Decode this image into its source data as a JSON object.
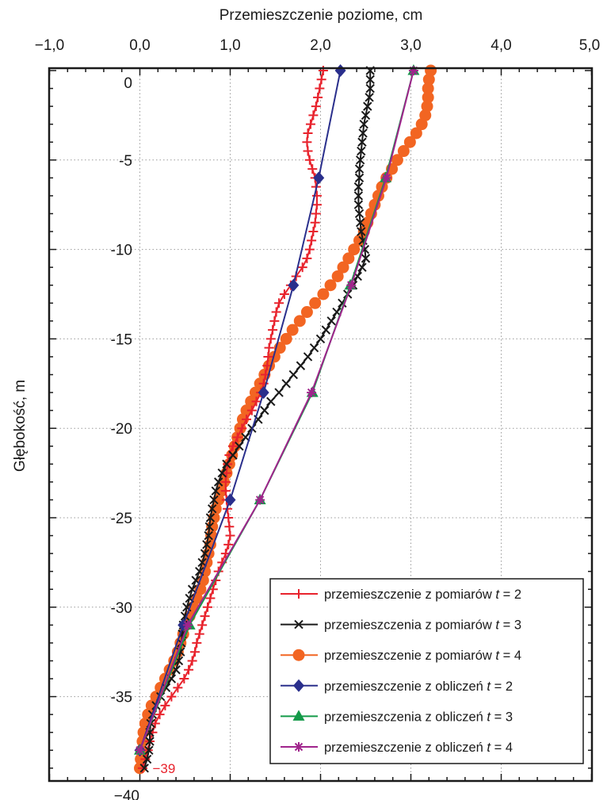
{
  "chart_data": {
    "type": "line",
    "xlabel": "Przemieszczenie poziome, cm",
    "ylabel": "Głębokość, m",
    "xlim": [
      -1.0,
      5.0
    ],
    "ylim": [
      -40,
      0
    ],
    "x_axis_position": "top",
    "grid": "dotted",
    "x_ticks": [
      -1.0,
      0.0,
      1.0,
      2.0,
      3.0,
      4.0,
      5.0
    ],
    "x_tick_labels": [
      "−1,0",
      "0,0",
      "1,0",
      "2,0",
      "3,0",
      "4,0",
      "5,0"
    ],
    "y_ticks": [
      0,
      -5,
      -10,
      -15,
      -20,
      -25,
      -30,
      -35,
      -40
    ],
    "y_tick_labels": [
      "0",
      "-5",
      "-10",
      "-15",
      "-20",
      "-25",
      "-30",
      "-35",
      "−40"
    ],
    "legend_position": "bottom-right",
    "annotation": {
      "text": "−39",
      "x": 0.0,
      "y": -39,
      "color": "#e8232d"
    },
    "series": [
      {
        "name": "przemieszczenie z pomiarów t = 2",
        "label_prefix": "przemieszczenie z pomiarów ",
        "color": "#e8232d",
        "marker": "plus",
        "points": [
          [
            2.03,
            0
          ],
          [
            2.01,
            -0.5
          ],
          [
            1.99,
            -1
          ],
          [
            1.97,
            -1.5
          ],
          [
            1.95,
            -2
          ],
          [
            1.92,
            -2.5
          ],
          [
            1.89,
            -3
          ],
          [
            1.86,
            -3.5
          ],
          [
            1.85,
            -4
          ],
          [
            1.86,
            -4.5
          ],
          [
            1.88,
            -5
          ],
          [
            1.91,
            -5.5
          ],
          [
            1.94,
            -6
          ],
          [
            1.95,
            -6.5
          ],
          [
            1.96,
            -7
          ],
          [
            1.96,
            -7.5
          ],
          [
            1.95,
            -8
          ],
          [
            1.94,
            -8.5
          ],
          [
            1.92,
            -9
          ],
          [
            1.9,
            -9.5
          ],
          [
            1.88,
            -10
          ],
          [
            1.85,
            -10.5
          ],
          [
            1.8,
            -11
          ],
          [
            1.73,
            -11.5
          ],
          [
            1.67,
            -12
          ],
          [
            1.6,
            -12.5
          ],
          [
            1.54,
            -13
          ],
          [
            1.51,
            -13.5
          ],
          [
            1.49,
            -14
          ],
          [
            1.47,
            -14.5
          ],
          [
            1.45,
            -15
          ],
          [
            1.43,
            -15.5
          ],
          [
            1.42,
            -16
          ],
          [
            1.41,
            -16.5
          ],
          [
            1.39,
            -17
          ],
          [
            1.37,
            -17.5
          ],
          [
            1.34,
            -18
          ],
          [
            1.29,
            -18.5
          ],
          [
            1.24,
            -19
          ],
          [
            1.18,
            -19.5
          ],
          [
            1.13,
            -20
          ],
          [
            1.08,
            -20.5
          ],
          [
            1.03,
            -21
          ],
          [
            0.99,
            -21.5
          ],
          [
            0.97,
            -22
          ],
          [
            0.96,
            -22.5
          ],
          [
            0.95,
            -23
          ],
          [
            0.95,
            -23.5
          ],
          [
            0.96,
            -24
          ],
          [
            0.97,
            -24.5
          ],
          [
            0.98,
            -25
          ],
          [
            0.99,
            -25.5
          ],
          [
            1.0,
            -26
          ],
          [
            0.98,
            -26.5
          ],
          [
            0.95,
            -27
          ],
          [
            0.91,
            -27.5
          ],
          [
            0.87,
            -28
          ],
          [
            0.84,
            -28.5
          ],
          [
            0.81,
            -29
          ],
          [
            0.78,
            -29.5
          ],
          [
            0.75,
            -30
          ],
          [
            0.72,
            -30.5
          ],
          [
            0.69,
            -31
          ],
          [
            0.66,
            -31.5
          ],
          [
            0.63,
            -32
          ],
          [
            0.61,
            -32.5
          ],
          [
            0.58,
            -33
          ],
          [
            0.54,
            -33.5
          ],
          [
            0.49,
            -34
          ],
          [
            0.42,
            -34.5
          ],
          [
            0.35,
            -35
          ],
          [
            0.28,
            -35.5
          ],
          [
            0.22,
            -36
          ],
          [
            0.17,
            -36.5
          ],
          [
            0.14,
            -37
          ],
          [
            0.11,
            -37.5
          ],
          [
            0.09,
            -38
          ],
          [
            0.06,
            -38.5
          ],
          [
            0.03,
            -39
          ]
        ]
      },
      {
        "name": "przemieszczenia z pomiarów t = 3",
        "label_prefix": "przemieszczenia z pomiarów ",
        "color": "#1a1a1a",
        "marker": "x",
        "points": [
          [
            2.55,
            0
          ],
          [
            2.55,
            -0.5
          ],
          [
            2.55,
            -1
          ],
          [
            2.54,
            -1.5
          ],
          [
            2.52,
            -2
          ],
          [
            2.5,
            -2.5
          ],
          [
            2.48,
            -3
          ],
          [
            2.47,
            -3.5
          ],
          [
            2.46,
            -4
          ],
          [
            2.45,
            -4.5
          ],
          [
            2.44,
            -5
          ],
          [
            2.43,
            -5.5
          ],
          [
            2.43,
            -6
          ],
          [
            2.42,
            -6.5
          ],
          [
            2.42,
            -7
          ],
          [
            2.42,
            -7.5
          ],
          [
            2.43,
            -8
          ],
          [
            2.44,
            -8.5
          ],
          [
            2.45,
            -9
          ],
          [
            2.47,
            -9.5
          ],
          [
            2.49,
            -10
          ],
          [
            2.5,
            -10.5
          ],
          [
            2.46,
            -11
          ],
          [
            2.41,
            -11.5
          ],
          [
            2.36,
            -12
          ],
          [
            2.3,
            -12.5
          ],
          [
            2.24,
            -13
          ],
          [
            2.18,
            -13.5
          ],
          [
            2.12,
            -14
          ],
          [
            2.06,
            -14.5
          ],
          [
            2.0,
            -15
          ],
          [
            1.93,
            -15.5
          ],
          [
            1.86,
            -16
          ],
          [
            1.78,
            -16.5
          ],
          [
            1.7,
            -17
          ],
          [
            1.62,
            -17.5
          ],
          [
            1.54,
            -18
          ],
          [
            1.45,
            -18.5
          ],
          [
            1.38,
            -19
          ],
          [
            1.31,
            -19.5
          ],
          [
            1.24,
            -20
          ],
          [
            1.17,
            -20.5
          ],
          [
            1.1,
            -21
          ],
          [
            1.03,
            -21.5
          ],
          [
            0.96,
            -22
          ],
          [
            0.91,
            -22.5
          ],
          [
            0.87,
            -23
          ],
          [
            0.84,
            -23.5
          ],
          [
            0.82,
            -24
          ],
          [
            0.8,
            -24.5
          ],
          [
            0.78,
            -25
          ],
          [
            0.77,
            -25.5
          ],
          [
            0.76,
            -26
          ],
          [
            0.74,
            -26.5
          ],
          [
            0.72,
            -27
          ],
          [
            0.69,
            -27.5
          ],
          [
            0.66,
            -28
          ],
          [
            0.62,
            -28.5
          ],
          [
            0.58,
            -29
          ],
          [
            0.55,
            -29.5
          ],
          [
            0.52,
            -30
          ],
          [
            0.5,
            -30.5
          ],
          [
            0.48,
            -31
          ],
          [
            0.47,
            -31.5
          ],
          [
            0.46,
            -32
          ],
          [
            0.45,
            -32.5
          ],
          [
            0.43,
            -33
          ],
          [
            0.4,
            -33.5
          ],
          [
            0.35,
            -34
          ],
          [
            0.29,
            -34.5
          ],
          [
            0.23,
            -35
          ],
          [
            0.18,
            -35.5
          ],
          [
            0.14,
            -36
          ],
          [
            0.12,
            -36.5
          ],
          [
            0.11,
            -37
          ],
          [
            0.11,
            -37.5
          ],
          [
            0.1,
            -38
          ],
          [
            0.08,
            -38.5
          ],
          [
            0.05,
            -39
          ]
        ]
      },
      {
        "name": "przemieszczenie z pomiarów t = 4",
        "label_prefix": "przemieszczenie z pomiarów ",
        "color": "#f26522",
        "marker": "circle",
        "points": [
          [
            3.22,
            0
          ],
          [
            3.2,
            -0.5
          ],
          [
            3.19,
            -1
          ],
          [
            3.19,
            -1.5
          ],
          [
            3.18,
            -2
          ],
          [
            3.16,
            -2.5
          ],
          [
            3.12,
            -3
          ],
          [
            3.06,
            -3.5
          ],
          [
            2.99,
            -4
          ],
          [
            2.92,
            -4.5
          ],
          [
            2.85,
            -5
          ],
          [
            2.79,
            -5.5
          ],
          [
            2.73,
            -6
          ],
          [
            2.68,
            -6.5
          ],
          [
            2.64,
            -7
          ],
          [
            2.6,
            -7.5
          ],
          [
            2.56,
            -8
          ],
          [
            2.52,
            -8.5
          ],
          [
            2.48,
            -9
          ],
          [
            2.43,
            -9.5
          ],
          [
            2.37,
            -10
          ],
          [
            2.31,
            -10.5
          ],
          [
            2.25,
            -11
          ],
          [
            2.19,
            -11.5
          ],
          [
            2.11,
            -12
          ],
          [
            2.03,
            -12.5
          ],
          [
            1.94,
            -13
          ],
          [
            1.85,
            -13.5
          ],
          [
            1.77,
            -14
          ],
          [
            1.69,
            -14.5
          ],
          [
            1.62,
            -15
          ],
          [
            1.55,
            -15.5
          ],
          [
            1.49,
            -16
          ],
          [
            1.43,
            -16.5
          ],
          [
            1.38,
            -17
          ],
          [
            1.33,
            -17.5
          ],
          [
            1.28,
            -18
          ],
          [
            1.23,
            -18.5
          ],
          [
            1.18,
            -19
          ],
          [
            1.14,
            -19.5
          ],
          [
            1.11,
            -20
          ],
          [
            1.08,
            -20.5
          ],
          [
            1.05,
            -21
          ],
          [
            1.02,
            -21.5
          ],
          [
            0.99,
            -22
          ],
          [
            0.96,
            -22.5
          ],
          [
            0.93,
            -23
          ],
          [
            0.9,
            -23.5
          ],
          [
            0.87,
            -24
          ],
          [
            0.84,
            -24.5
          ],
          [
            0.82,
            -25
          ],
          [
            0.8,
            -25.5
          ],
          [
            0.79,
            -26
          ],
          [
            0.78,
            -26.5
          ],
          [
            0.76,
            -27
          ],
          [
            0.74,
            -27.5
          ],
          [
            0.72,
            -28
          ],
          [
            0.7,
            -28.5
          ],
          [
            0.67,
            -29
          ],
          [
            0.63,
            -29.5
          ],
          [
            0.59,
            -30
          ],
          [
            0.55,
            -30.5
          ],
          [
            0.51,
            -31
          ],
          [
            0.48,
            -31.5
          ],
          [
            0.45,
            -32
          ],
          [
            0.42,
            -32.5
          ],
          [
            0.38,
            -33
          ],
          [
            0.33,
            -33.5
          ],
          [
            0.28,
            -34
          ],
          [
            0.23,
            -34.5
          ],
          [
            0.18,
            -35
          ],
          [
            0.13,
            -35.5
          ],
          [
            0.09,
            -36
          ],
          [
            0.06,
            -36.5
          ],
          [
            0.04,
            -37
          ],
          [
            0.03,
            -37.5
          ],
          [
            0.02,
            -38
          ],
          [
            0.01,
            -38.5
          ],
          [
            0.0,
            -39
          ]
        ]
      },
      {
        "name": "przemieszczenie z obliczeń t = 2",
        "label_prefix": "przemieszczenie z obliczeń ",
        "color": "#2a2f8c",
        "marker": "diamond",
        "points": [
          [
            2.22,
            0
          ],
          [
            1.98,
            -6
          ],
          [
            1.7,
            -12
          ],
          [
            1.37,
            -18
          ],
          [
            1.0,
            -24
          ],
          [
            0.48,
            -31
          ],
          [
            0.0,
            -38
          ]
        ]
      },
      {
        "name": "przemieszczenia z obliczeń t = 3",
        "label_prefix": "przemieszczenia z obliczeń ",
        "color": "#139a48",
        "marker": "triangle",
        "points": [
          [
            3.03,
            0
          ],
          [
            2.72,
            -6
          ],
          [
            2.33,
            -12
          ],
          [
            1.91,
            -18
          ],
          [
            1.33,
            -24
          ],
          [
            0.55,
            -31
          ],
          [
            0.0,
            -38
          ]
        ]
      },
      {
        "name": "przemieszczenie z obliczeń t = 4",
        "label_prefix": "przemieszczenie z obliczeń ",
        "color": "#a0248c",
        "marker": "asterisk",
        "points": [
          [
            3.03,
            0
          ],
          [
            2.73,
            -6
          ],
          [
            2.34,
            -12
          ],
          [
            1.9,
            -18
          ],
          [
            1.33,
            -24
          ],
          [
            0.53,
            -31
          ],
          [
            0.0,
            -38
          ]
        ]
      }
    ]
  }
}
